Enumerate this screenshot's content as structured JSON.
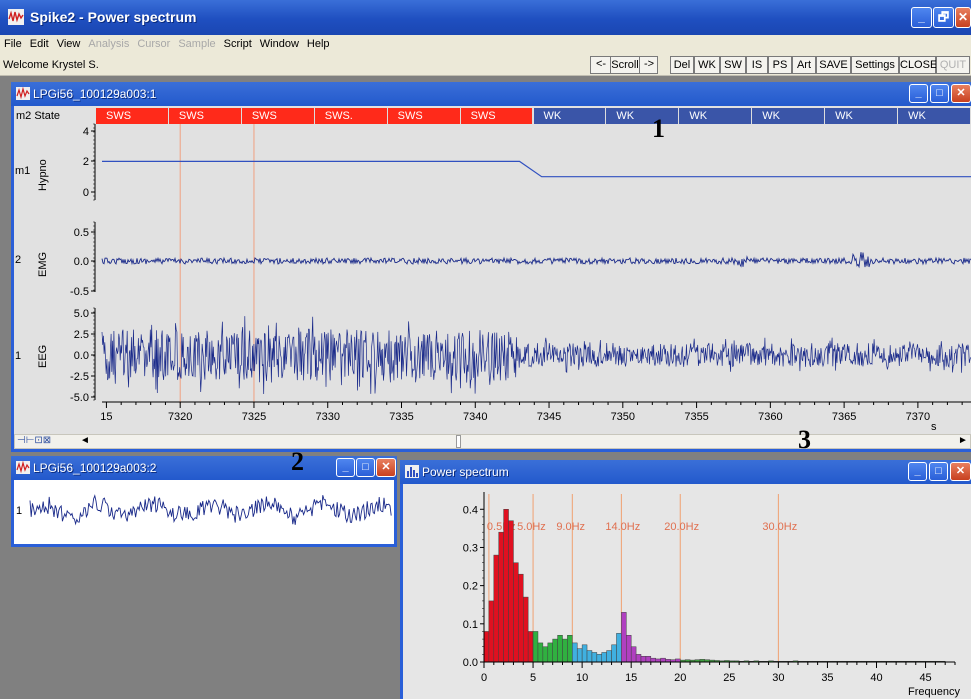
{
  "app": {
    "title": "Spike2 - Power spectrum",
    "window_controls": [
      "_",
      "🗗",
      "✕"
    ]
  },
  "menu": [
    {
      "label": "File",
      "enabled": true
    },
    {
      "label": "Edit",
      "enabled": true
    },
    {
      "label": "View",
      "enabled": true
    },
    {
      "label": "Analysis",
      "enabled": false
    },
    {
      "label": "Cursor",
      "enabled": false
    },
    {
      "label": "Sample",
      "enabled": false
    },
    {
      "label": "Script",
      "enabled": true
    },
    {
      "label": "Window",
      "enabled": true
    },
    {
      "label": "Help",
      "enabled": true
    }
  ],
  "toolbar": {
    "welcome": "Welcome Krystel S.",
    "scroll_left": "<-",
    "scroll_label": "Scroll",
    "scroll_right": "->",
    "buttons": [
      "Del",
      "WK",
      "SW",
      "IS",
      "PS",
      "Art",
      "SAVE",
      "Settings",
      "CLOSE",
      "QUIT"
    ]
  },
  "win1": {
    "title": "LPGi56_100129a003:1",
    "state_channel": "m2 State",
    "states": [
      "SWS",
      "SWS",
      "SWS",
      "SWS.",
      "SWS",
      "SWS",
      "WK",
      "WK",
      "WK",
      "WK",
      "WK",
      "WK"
    ],
    "state_colors": {
      "SWS": "#ff2a1a",
      "WK": "#3a55a8"
    },
    "channels": [
      {
        "num": "m1",
        "name": "Hypno",
        "ticks": [
          "4",
          "2",
          "0"
        ]
      },
      {
        "num": "2",
        "name": "EMG",
        "ticks": [
          "0.5",
          "0.0",
          "-0.5"
        ]
      },
      {
        "num": "1",
        "name": "EEG",
        "ticks": [
          "5.0",
          "2.5",
          "0.0",
          "-2.5",
          "-5.0"
        ]
      }
    ],
    "time_ticks": [
      "15",
      "7320",
      "7325",
      "7330",
      "7335",
      "7340",
      "7345",
      "7350",
      "7355",
      "7360",
      "7365",
      "7370",
      "73"
    ],
    "time_unit": "s",
    "hypno_level": {
      "before": 2,
      "after": 1,
      "change_time_start": 7343,
      "change_time_end": 7344.5
    },
    "cursor_times": [
      7320,
      7325
    ]
  },
  "win2": {
    "title": "LPGi56_100129a003:2",
    "channel": "1"
  },
  "ps": {
    "title": "Power spectrum",
    "yticks": [
      "0.4",
      "0.3",
      "0.2",
      "0.1",
      "0.0"
    ],
    "xticks": [
      "0",
      "5",
      "10",
      "15",
      "20",
      "25",
      "30",
      "35",
      "40",
      "45"
    ],
    "xlabel": "Frequency",
    "cursor_labels": [
      "0.5Hz",
      "5.0Hz",
      "9.0Hz",
      "14.0Hz",
      "20.0Hz",
      "30.0Hz"
    ],
    "cursor_freqs": [
      0.5,
      5,
      9,
      14,
      20,
      30
    ]
  },
  "annotations": [
    "1",
    "2",
    "3"
  ],
  "chart_data": {
    "type": "bar",
    "xlabel": "Frequency",
    "ylabel": "",
    "xlim": [
      0,
      48
    ],
    "ylim": [
      0,
      0.44
    ],
    "bin_width": 0.5,
    "bands": [
      {
        "from": 0,
        "to": 5,
        "color": "#e01020"
      },
      {
        "from": 5,
        "to": 9,
        "color": "#30b040"
      },
      {
        "from": 9,
        "to": 14,
        "color": "#40b0e0"
      },
      {
        "from": 14,
        "to": 20,
        "color": "#b040c0"
      },
      {
        "from": 20,
        "to": 48,
        "color": "#40a040"
      }
    ],
    "values": [
      0.08,
      0.16,
      0.28,
      0.34,
      0.4,
      0.37,
      0.26,
      0.23,
      0.17,
      0.08,
      0.08,
      0.05,
      0.04,
      0.05,
      0.06,
      0.07,
      0.06,
      0.07,
      0.05,
      0.035,
      0.045,
      0.03,
      0.025,
      0.02,
      0.025,
      0.03,
      0.045,
      0.075,
      0.13,
      0.07,
      0.04,
      0.02,
      0.015,
      0.015,
      0.01,
      0.008,
      0.01,
      0.007,
      0.006,
      0.008,
      0.005,
      0.006,
      0.005,
      0.006,
      0.007,
      0.006,
      0.005,
      0.004,
      0.003,
      0.004,
      0.003,
      0.003,
      0.002,
      0.003,
      0.002,
      0.003,
      0.002,
      0.002,
      0.003,
      0.002,
      0.002,
      0.002,
      0.002,
      0.003,
      0.002,
      0.002,
      0.002,
      0.002,
      0.002,
      0.002,
      0.002,
      0.002,
      0.002,
      0.002,
      0.002,
      0.002,
      0.002,
      0.002,
      0.002,
      0.002,
      0.002,
      0.002,
      0.002,
      0.002,
      0.002,
      0.002,
      0.002,
      0.002,
      0.002,
      0.002,
      0.002,
      0.002,
      0.002,
      0.002
    ]
  }
}
